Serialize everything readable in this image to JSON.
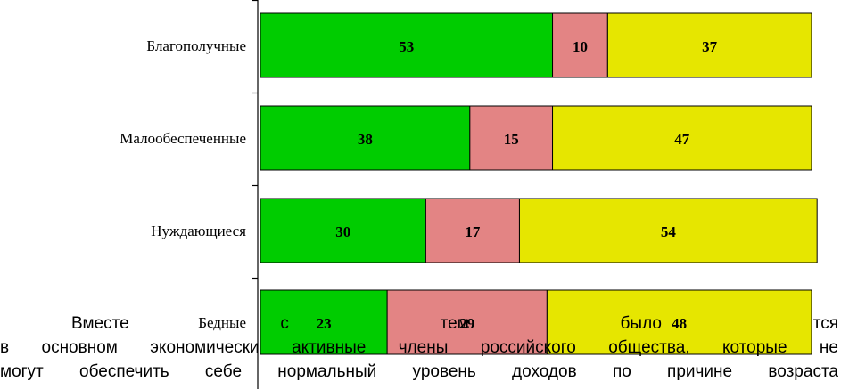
{
  "chart_data": {
    "type": "bar",
    "orientation": "horizontal",
    "stacked": true,
    "categories": [
      "Благополучные",
      "Малообеспеченные",
      "Нуждающиеся",
      "Бедные"
    ],
    "series": [
      {
        "values": [
          53,
          38,
          30,
          23
        ],
        "color": "#00cc00"
      },
      {
        "values": [
          10,
          15,
          17,
          29
        ],
        "color": "#e38484"
      },
      {
        "values": [
          37,
          47,
          54,
          48
        ],
        "color": "#e6e600"
      }
    ],
    "xlim": [
      0,
      100
    ],
    "grid": false,
    "legend": "none"
  },
  "body_text": {
    "lines": [
      "Вместе с тем было                                                                   тся",
      "в основном экономически      активные члены российского общества, которые не",
      "могут обеспечить себе нормальный уровень доходов по причине возраста"
    ]
  }
}
